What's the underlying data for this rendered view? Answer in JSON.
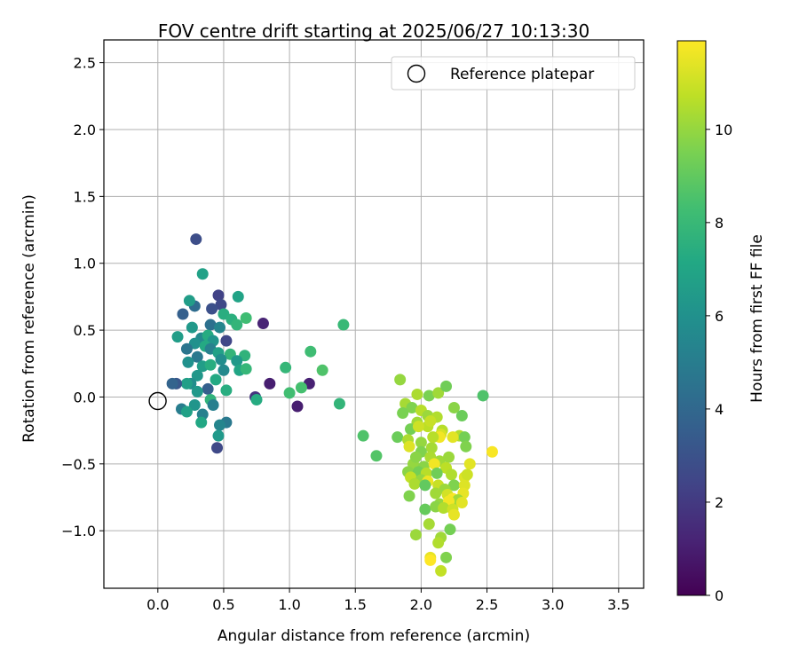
{
  "chart_data": {
    "type": "scatter",
    "title": "FOV centre drift starting at 2025/06/27 10:13:30",
    "xlabel": "Angular distance from reference (arcmin)",
    "ylabel": "Rotation from reference (arcmin)",
    "xlim": [
      -0.41,
      3.69
    ],
    "ylim": [
      -1.43,
      2.67
    ],
    "xticks": [
      "0.0",
      "0.5",
      "1.0",
      "1.5",
      "2.0",
      "2.5",
      "3.0",
      "3.5"
    ],
    "yticks": [
      "−1.0",
      "−0.5",
      "0.0",
      "0.5",
      "1.0",
      "1.5",
      "2.0",
      "2.5"
    ],
    "grid": true,
    "colormap": "viridis",
    "colorbar": {
      "label": "Hours from first FF file",
      "range": [
        0,
        11.9
      ],
      "ticks": [
        "0",
        "2",
        "4",
        "6",
        "8",
        "10"
      ]
    },
    "legend": {
      "position": "top-right",
      "entries": [
        "Reference platepar"
      ]
    },
    "reference": {
      "x": 0.0,
      "y": 0.0
    },
    "points": [
      [
        0.29,
        1.18,
        2.8
      ],
      [
        0.46,
        0.76,
        2.3
      ],
      [
        0.48,
        0.69,
        2.6
      ],
      [
        0.41,
        0.66,
        2.9
      ],
      [
        0.34,
        0.92,
        6.8
      ],
      [
        0.61,
        0.75,
        6.9
      ],
      [
        0.28,
        0.68,
        4.2
      ],
      [
        0.24,
        0.72,
        6.6
      ],
      [
        0.5,
        0.62,
        7.4
      ],
      [
        0.56,
        0.58,
        7.5
      ],
      [
        0.67,
        0.59,
        8.2
      ],
      [
        0.6,
        0.54,
        7.8
      ],
      [
        0.19,
        0.62,
        3.6
      ],
      [
        0.8,
        0.55,
        1.2
      ],
      [
        1.41,
        0.54,
        8.0
      ],
      [
        0.4,
        0.54,
        4.4
      ],
      [
        0.47,
        0.52,
        5.4
      ],
      [
        0.26,
        0.52,
        6.4
      ],
      [
        0.15,
        0.45,
        6.6
      ],
      [
        0.33,
        0.44,
        5.6
      ],
      [
        0.38,
        0.46,
        7.3
      ],
      [
        0.42,
        0.42,
        6.2
      ],
      [
        0.52,
        0.42,
        2.5
      ],
      [
        0.28,
        0.4,
        6.0
      ],
      [
        0.36,
        0.38,
        7.2
      ],
      [
        0.22,
        0.36,
        4.6
      ],
      [
        0.4,
        0.36,
        5.2
      ],
      [
        0.46,
        0.33,
        6.8
      ],
      [
        0.55,
        0.32,
        7.8
      ],
      [
        0.66,
        0.31,
        7.7
      ],
      [
        1.16,
        0.34,
        8.2
      ],
      [
        0.3,
        0.3,
        4.8
      ],
      [
        0.48,
        0.28,
        5.8
      ],
      [
        0.6,
        0.27,
        6.4
      ],
      [
        0.23,
        0.26,
        6.0
      ],
      [
        0.34,
        0.23,
        6.6
      ],
      [
        0.4,
        0.24,
        7.4
      ],
      [
        0.5,
        0.2,
        5.6
      ],
      [
        0.62,
        0.2,
        7.0
      ],
      [
        0.67,
        0.21,
        7.9
      ],
      [
        0.97,
        0.22,
        7.9
      ],
      [
        1.25,
        0.2,
        8.6
      ],
      [
        0.3,
        0.16,
        6.3
      ],
      [
        0.44,
        0.13,
        7.2
      ],
      [
        0.25,
        0.1,
        5.8
      ],
      [
        0.22,
        0.1,
        6.7
      ],
      [
        0.38,
        0.06,
        3.6
      ],
      [
        0.14,
        0.1,
        3.2
      ],
      [
        0.11,
        0.1,
        3.8
      ],
      [
        0.3,
        0.04,
        6.4
      ],
      [
        0.52,
        0.05,
        7.4
      ],
      [
        0.85,
        0.1,
        1.0
      ],
      [
        1.15,
        0.1,
        1.1
      ],
      [
        1.0,
        0.03,
        8.3
      ],
      [
        1.09,
        0.07,
        8.4
      ],
      [
        0.74,
        0.0,
        1.8
      ],
      [
        0.75,
        -0.02,
        7.3
      ],
      [
        1.06,
        -0.07,
        1.0
      ],
      [
        1.38,
        -0.05,
        7.8
      ],
      [
        0.4,
        -0.02,
        7.7
      ],
      [
        0.28,
        -0.06,
        6.2
      ],
      [
        0.42,
        -0.06,
        5.1
      ],
      [
        0.18,
        -0.09,
        5.0
      ],
      [
        0.22,
        -0.11,
        6.8
      ],
      [
        0.34,
        -0.13,
        5.2
      ],
      [
        0.52,
        -0.19,
        4.8
      ],
      [
        0.47,
        -0.21,
        5.4
      ],
      [
        0.33,
        -0.19,
        7.1
      ],
      [
        0.46,
        -0.29,
        6.4
      ],
      [
        0.45,
        -0.38,
        2.6
      ],
      [
        1.84,
        0.13,
        10.0
      ],
      [
        1.97,
        0.02,
        10.4
      ],
      [
        2.06,
        0.01,
        9.5
      ],
      [
        2.13,
        0.03,
        10.2
      ],
      [
        2.19,
        0.08,
        9.3
      ],
      [
        2.47,
        0.01,
        8.6
      ],
      [
        1.88,
        -0.05,
        10.3
      ],
      [
        1.93,
        -0.08,
        9.6
      ],
      [
        2.0,
        -0.1,
        10.6
      ],
      [
        2.05,
        -0.14,
        10.1
      ],
      [
        2.12,
        -0.15,
        10.5
      ],
      [
        2.25,
        -0.08,
        9.8
      ],
      [
        1.86,
        -0.12,
        9.5
      ],
      [
        1.97,
        -0.19,
        10.2
      ],
      [
        2.05,
        -0.22,
        10.7
      ],
      [
        2.16,
        -0.25,
        10.6
      ],
      [
        2.31,
        -0.14,
        9.2
      ],
      [
        1.92,
        -0.24,
        9.4
      ],
      [
        1.98,
        -0.22,
        11.0
      ],
      [
        2.07,
        -0.18,
        10.9
      ],
      [
        2.15,
        -0.28,
        11.2
      ],
      [
        2.29,
        -0.29,
        10.5
      ],
      [
        2.33,
        -0.3,
        9.4
      ],
      [
        1.82,
        -0.3,
        9.2
      ],
      [
        1.9,
        -0.32,
        10.4
      ],
      [
        2.0,
        -0.34,
        10.0
      ],
      [
        2.08,
        -0.38,
        10.3
      ],
      [
        2.14,
        -0.3,
        11.7
      ],
      [
        2.24,
        -0.3,
        11.4
      ],
      [
        2.34,
        -0.37,
        9.6
      ],
      [
        1.56,
        -0.29,
        8.6
      ],
      [
        1.66,
        -0.44,
        8.7
      ],
      [
        1.91,
        -0.37,
        11.3
      ],
      [
        2.0,
        -0.41,
        9.6
      ],
      [
        2.07,
        -0.45,
        10.4
      ],
      [
        2.14,
        -0.48,
        10.2
      ],
      [
        2.21,
        -0.45,
        10.1
      ],
      [
        2.54,
        -0.41,
        11.8
      ],
      [
        1.94,
        -0.5,
        10.0
      ],
      [
        2.02,
        -0.52,
        9.8
      ],
      [
        2.1,
        -0.5,
        11.7
      ],
      [
        2.19,
        -0.53,
        10.7
      ],
      [
        2.37,
        -0.5,
        11.4
      ],
      [
        1.9,
        -0.56,
        9.8
      ],
      [
        1.98,
        -0.56,
        9.4
      ],
      [
        2.04,
        -0.57,
        10.6
      ],
      [
        2.12,
        -0.57,
        9.3
      ],
      [
        2.23,
        -0.58,
        10.5
      ],
      [
        1.92,
        -0.6,
        10.8
      ],
      [
        2.0,
        -0.62,
        10.0
      ],
      [
        2.05,
        -0.63,
        11.6
      ],
      [
        2.33,
        -0.6,
        11.3
      ],
      [
        1.95,
        -0.65,
        10.4
      ],
      [
        2.03,
        -0.66,
        9.0
      ],
      [
        2.13,
        -0.66,
        10.9
      ],
      [
        2.25,
        -0.66,
        9.6
      ],
      [
        2.33,
        -0.66,
        11.3
      ],
      [
        2.18,
        -0.69,
        10.1
      ],
      [
        2.32,
        -0.72,
        11.5
      ],
      [
        1.91,
        -0.74,
        9.6
      ],
      [
        2.11,
        -0.72,
        10.2
      ],
      [
        2.2,
        -0.73,
        11.1
      ],
      [
        2.24,
        -0.76,
        11.8
      ],
      [
        2.28,
        -0.77,
        10.2
      ],
      [
        2.14,
        -0.8,
        10.0
      ],
      [
        2.21,
        -0.78,
        11.7
      ],
      [
        2.31,
        -0.79,
        11.4
      ],
      [
        2.03,
        -0.84,
        9.1
      ],
      [
        2.11,
        -0.82,
        9.8
      ],
      [
        2.17,
        -0.83,
        10.5
      ],
      [
        2.24,
        -0.84,
        11.0
      ],
      [
        2.25,
        -0.88,
        11.5
      ],
      [
        2.06,
        -0.95,
        10.3
      ],
      [
        2.22,
        -0.99,
        9.4
      ],
      [
        1.96,
        -1.03,
        10.1
      ],
      [
        2.15,
        -1.05,
        10.2
      ],
      [
        2.07,
        -1.2,
        11.5
      ],
      [
        2.07,
        -1.22,
        11.9
      ],
      [
        2.19,
        -1.2,
        9.6
      ],
      [
        2.15,
        -1.3,
        10.8
      ],
      [
        2.13,
        -1.09,
        10.5
      ],
      [
        2.35,
        -0.58,
        11.0
      ],
      [
        2.09,
        -0.3,
        10.6
      ],
      [
        1.96,
        -0.45,
        9.8
      ]
    ]
  }
}
